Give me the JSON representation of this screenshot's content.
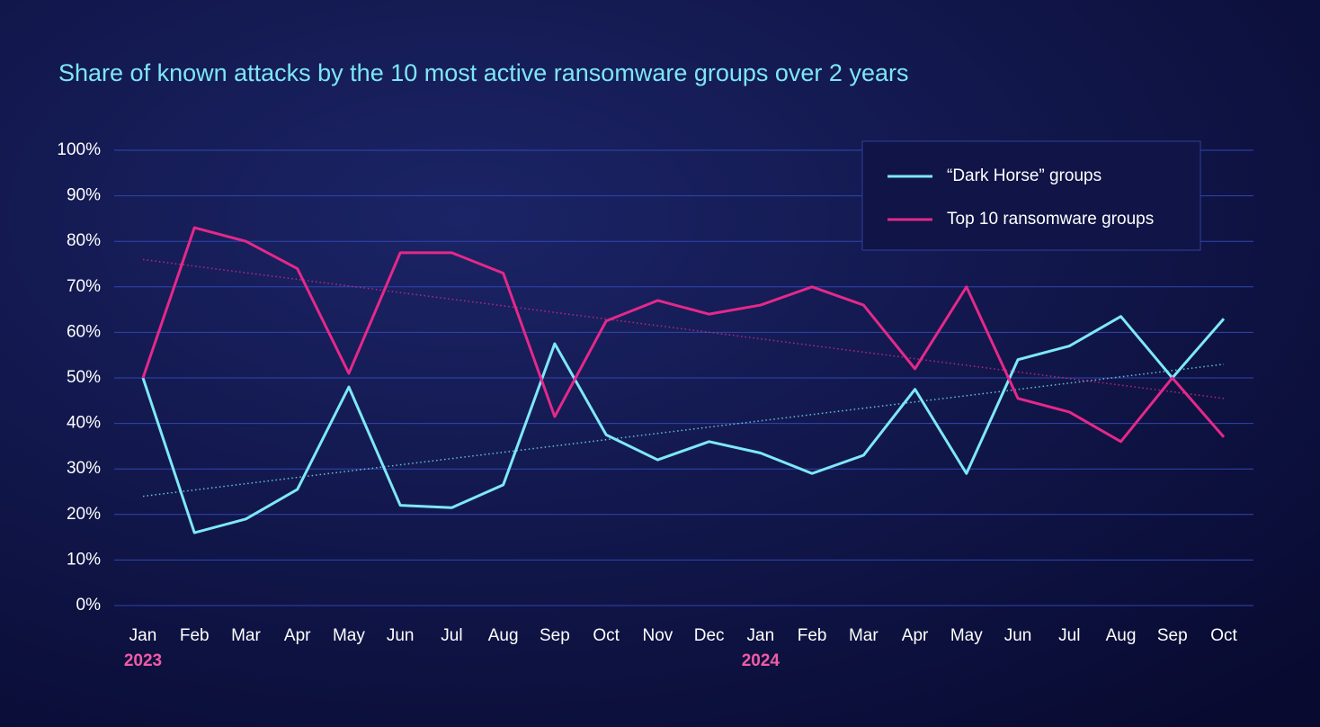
{
  "chart_data": {
    "type": "line",
    "title": "Share of known attacks by the 10 most active ransomware groups over 2 years",
    "categories": [
      "Jan",
      "Feb",
      "Mar",
      "Apr",
      "May",
      "Jun",
      "Jul",
      "Aug",
      "Sep",
      "Oct",
      "Nov",
      "Dec",
      "Jan",
      "Feb",
      "Mar",
      "Apr",
      "May",
      "Jun",
      "Jul",
      "Aug",
      "Sep",
      "Oct"
    ],
    "year_labels": [
      "2023",
      null,
      null,
      null,
      null,
      null,
      null,
      null,
      null,
      null,
      null,
      null,
      "2024",
      null,
      null,
      null,
      null,
      null,
      null,
      null,
      null,
      null
    ],
    "series": [
      {
        "name": "“Dark Horse” groups",
        "color": "#7ee8f6",
        "values": [
          50,
          16,
          19,
          25.5,
          48,
          22,
          21.5,
          26.5,
          57.5,
          37.5,
          32,
          36,
          33.5,
          29,
          33,
          47.5,
          29,
          54,
          57,
          63.5,
          50,
          63
        ],
        "trend": [
          24,
          53
        ]
      },
      {
        "name": "Top 10 ransomware groups",
        "color": "#e5288a",
        "values": [
          50,
          83,
          80,
          74,
          51,
          77.5,
          77.5,
          73,
          41.5,
          62.5,
          67,
          64,
          66,
          70,
          66,
          52,
          70,
          45.5,
          42.5,
          36,
          50,
          37
        ],
        "trend": [
          76,
          45.5
        ]
      }
    ],
    "ylim": [
      0,
      100
    ],
    "yticks": [
      {
        "value": 0,
        "label": "0%"
      },
      {
        "value": 10,
        "label": "10%"
      },
      {
        "value": 20,
        "label": "20%"
      },
      {
        "value": 30,
        "label": "30%"
      },
      {
        "value": 40,
        "label": "40%"
      },
      {
        "value": 50,
        "label": "50%"
      },
      {
        "value": 60,
        "label": "60%"
      },
      {
        "value": 70,
        "label": "70%"
      },
      {
        "value": 80,
        "label": "80%"
      },
      {
        "value": 90,
        "label": "90%"
      },
      {
        "value": 100,
        "label": "100%"
      }
    ],
    "grid": true,
    "legend": "top-right"
  }
}
